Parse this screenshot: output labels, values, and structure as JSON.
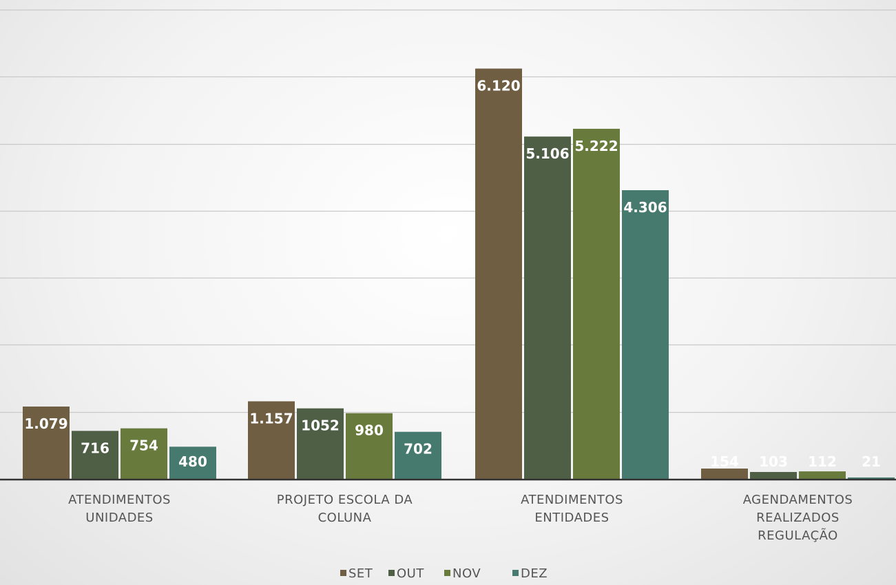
{
  "chart_data": {
    "type": "bar",
    "categories": [
      [
        "ATENDIMENTOS",
        "UNIDADES"
      ],
      [
        "PROJETO ESCOLA DA",
        "COLUNA"
      ],
      [
        "ATENDIMENTOS",
        "ENTIDADES"
      ],
      [
        "AGENDAMENTOS",
        "REALIZADOS",
        "REGULAÇÃO"
      ]
    ],
    "series": [
      {
        "name": "SET",
        "color": "#6f5e42",
        "values": [
          1079,
          1157,
          6120,
          154
        ],
        "labels": [
          "1.079",
          "1.157",
          "6.120",
          "154"
        ]
      },
      {
        "name": "OUT",
        "color": "#4f5f45",
        "values": [
          716,
          1052,
          5106,
          103
        ],
        "labels": [
          "716",
          "1052",
          "5.106",
          "103"
        ]
      },
      {
        "name": "NOV",
        "color": "#687b3c",
        "values": [
          754,
          980,
          5222,
          112
        ],
        "labels": [
          "754",
          "980",
          "5.222",
          "112"
        ]
      },
      {
        "name": "DEZ",
        "color": "#477a6e",
        "values": [
          480,
          702,
          4306,
          21
        ],
        "labels": [
          "480",
          "702",
          "4.306",
          "21"
        ]
      }
    ],
    "ylim": [
      0,
      7000
    ],
    "grid": true,
    "gridlines_at": [
      1000,
      2000,
      3000,
      4000,
      5000,
      6000,
      7000
    ],
    "legend": "bottom-center",
    "title": "",
    "xlabel": "",
    "ylabel": ""
  }
}
